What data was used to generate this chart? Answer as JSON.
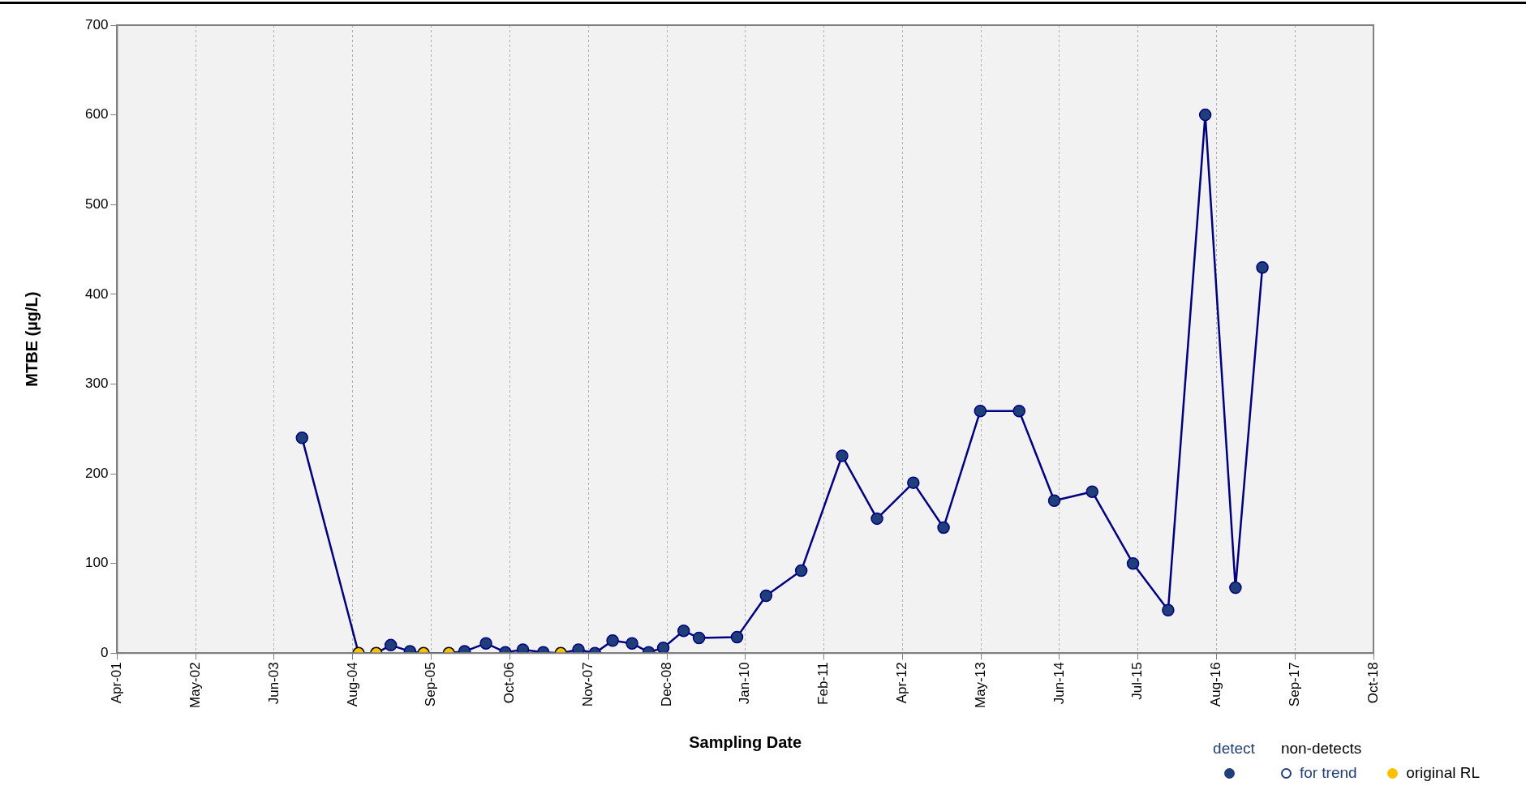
{
  "chart_data": {
    "type": "line",
    "xlabel": "Sampling Date",
    "ylabel": "MTBE (µg/L)",
    "legend_title": "non-detects",
    "xlim": [
      "2001-04-20",
      "2018-10-28"
    ],
    "xticks": [
      {
        "value": "2001-04-20",
        "label": "Apr-01"
      },
      {
        "value": "2002-05-25",
        "label": "May-02"
      },
      {
        "value": "2003-06-29",
        "label": "Jun-03"
      },
      {
        "value": "2004-08-03",
        "label": "Aug-04"
      },
      {
        "value": "2005-09-06",
        "label": "Sep-05"
      },
      {
        "value": "2006-10-11",
        "label": "Oct-06"
      },
      {
        "value": "2007-11-15",
        "label": "Nov-07"
      },
      {
        "value": "2008-12-20",
        "label": "Dec-08"
      },
      {
        "value": "2010-01-23",
        "label": "Jan-10"
      },
      {
        "value": "2011-02-27",
        "label": "Feb-11"
      },
      {
        "value": "2012-04-03",
        "label": "Apr-12"
      },
      {
        "value": "2013-05-07",
        "label": "May-13"
      },
      {
        "value": "2014-06-11",
        "label": "Jun-14"
      },
      {
        "value": "2015-07-16",
        "label": "Jul-15"
      },
      {
        "value": "2016-08-20",
        "label": "Aug-16"
      },
      {
        "value": "2017-09-23",
        "label": "Sep-17"
      },
      {
        "value": "2018-10-28",
        "label": "Oct-18"
      }
    ],
    "ylim": [
      0,
      700
    ],
    "yticks": [
      0,
      100,
      200,
      300,
      400,
      500,
      600,
      700
    ],
    "grid": "x",
    "legend": "bottom right",
    "series": [
      {
        "type": "line",
        "color": "#000080",
        "marker": "none",
        "line_style": "solid",
        "x": [
          "2003-11-18",
          "2004-09-01",
          "2004-11-30",
          "2005-02-12",
          "2005-05-21",
          "2005-07-29",
          "2005-12-05",
          "2006-02-23",
          "2006-06-12",
          "2006-09-19",
          "2006-12-17",
          "2007-03-31",
          "2007-06-28",
          "2007-09-26",
          "2007-12-19",
          "2008-03-18",
          "2008-06-25",
          "2008-09-18",
          "2008-12-01",
          "2009-03-15",
          "2009-06-01",
          "2009-12-12",
          "2010-05-09",
          "2010-11-04",
          "2011-05-31",
          "2011-11-25",
          "2012-05-28",
          "2012-10-29",
          "2013-05-04",
          "2013-11-18",
          "2014-05-16",
          "2014-11-25",
          "2015-06-21",
          "2015-12-17",
          "2016-06-23",
          "2016-11-24",
          "2017-04-10"
        ],
        "values": [
          240,
          0,
          0,
          9,
          2,
          0,
          0,
          2,
          11,
          1,
          4,
          1,
          0,
          4,
          0,
          14,
          11,
          1,
          6,
          25,
          17,
          18,
          64,
          92,
          220,
          150,
          190,
          140,
          270,
          270,
          170,
          180,
          100,
          48,
          600,
          73,
          430
        ]
      },
      {
        "type": "scatter",
        "name": "detect",
        "color": "#1f3f7a",
        "marker": "circle",
        "x": [
          "2003-11-18",
          "2005-02-12",
          "2005-05-21",
          "2006-02-23",
          "2006-06-12",
          "2006-09-19",
          "2006-12-17",
          "2007-03-31",
          "2007-09-26",
          "2007-12-19",
          "2008-03-18",
          "2008-06-25",
          "2008-09-18",
          "2008-12-01",
          "2009-03-15",
          "2009-06-01",
          "2009-12-12",
          "2010-05-09",
          "2010-11-04",
          "2011-05-31",
          "2011-11-25",
          "2012-05-28",
          "2012-10-29",
          "2013-05-04",
          "2013-11-18",
          "2014-05-16",
          "2014-11-25",
          "2015-06-21",
          "2015-12-17",
          "2016-06-23",
          "2016-11-24",
          "2017-04-10"
        ],
        "values": [
          240,
          9,
          2,
          2,
          11,
          1,
          4,
          1,
          4,
          0,
          14,
          11,
          1,
          6,
          25,
          17,
          18,
          64,
          92,
          220,
          150,
          190,
          140,
          270,
          270,
          170,
          180,
          100,
          48,
          600,
          73,
          430
        ]
      },
      {
        "type": "scatter",
        "name": "for trend",
        "color": "#1f3f7a",
        "marker": "circle"
      },
      {
        "type": "scatter",
        "name": "original RL",
        "color": "#ffc000",
        "marker": "circle",
        "x": [
          "2004-09-01",
          "2004-11-30",
          "2005-07-29",
          "2005-12-05",
          "2007-06-28"
        ],
        "values": [
          0,
          0,
          0,
          0,
          0
        ]
      }
    ]
  }
}
